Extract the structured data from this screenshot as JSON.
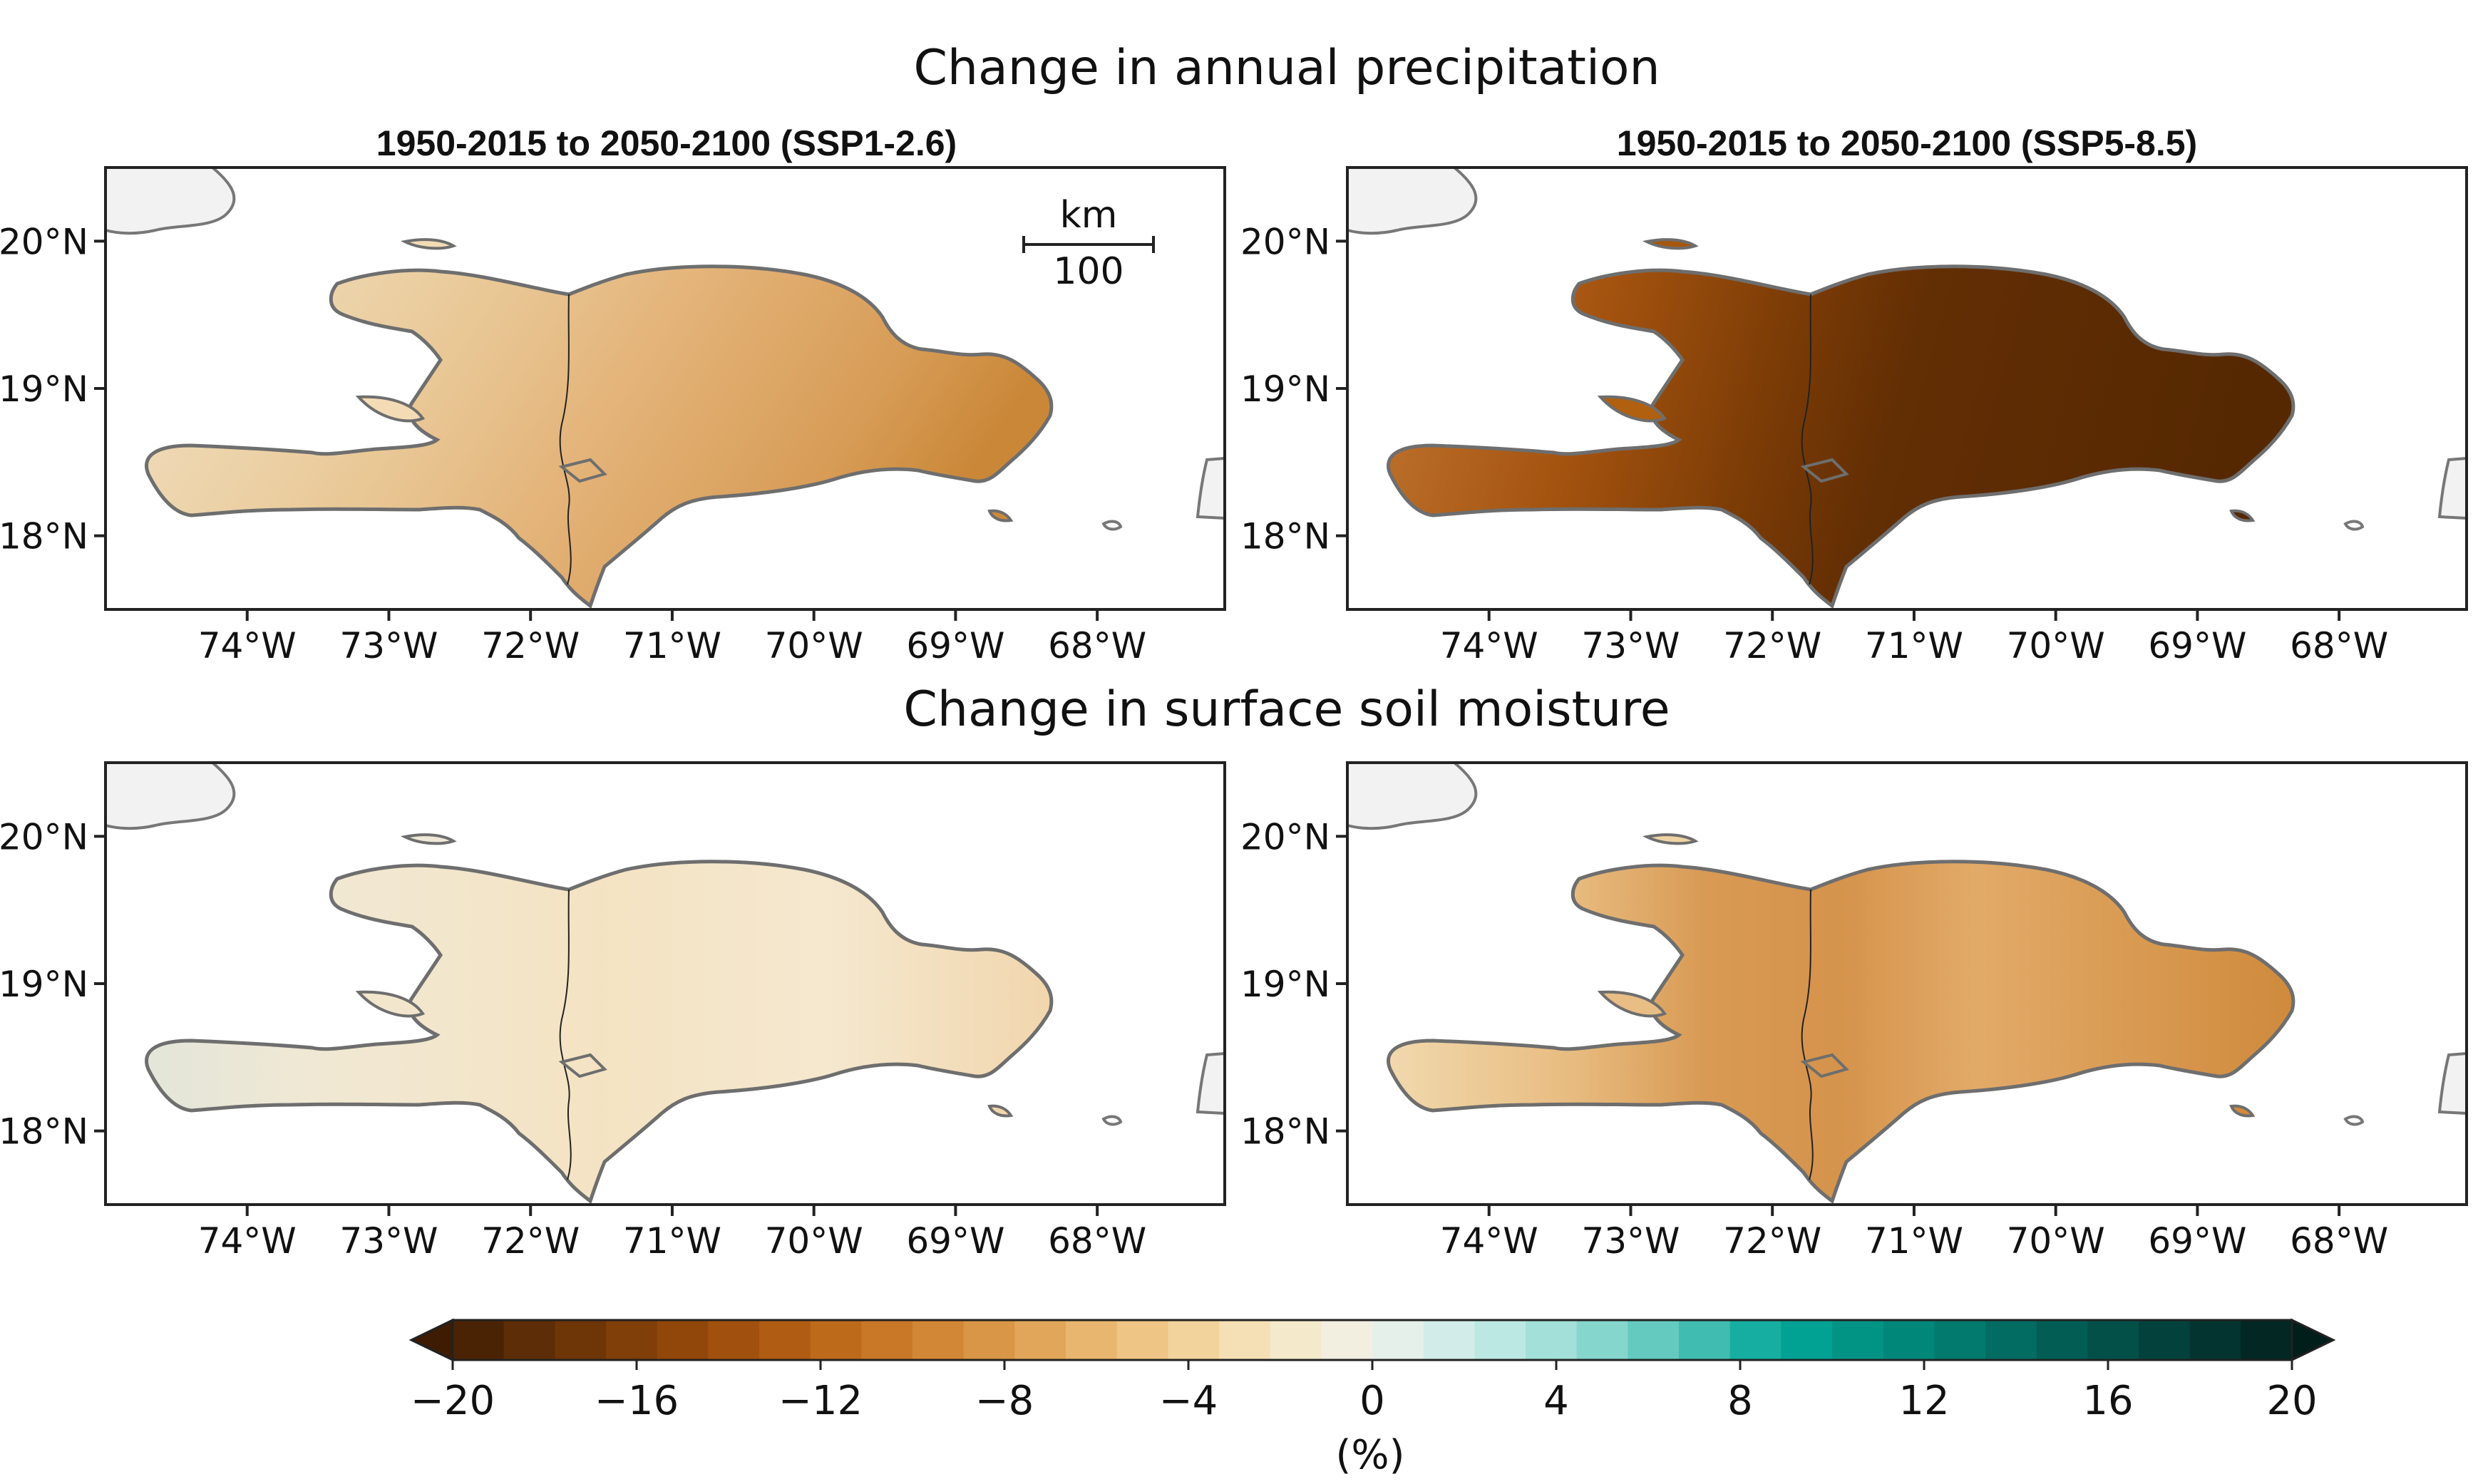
{
  "figure": {
    "row_titles": [
      "Change in annual precipitation",
      "Change in surface soil moisture"
    ],
    "panel_titles": [
      "1950-2015 to 2050-2100 (SSP1-2.6)",
      "1950-2015 to 2050-2100 (SSP5-8.5)"
    ],
    "lat_labels": [
      "20°N",
      "19°N",
      "18°N"
    ],
    "lon_labels": [
      "74°W",
      "73°W",
      "72°W",
      "71°W",
      "70°W",
      "69°W",
      "68°W"
    ],
    "scalebar": {
      "unit": "km",
      "value": "100"
    },
    "colorbar": {
      "ticks": [
        "−20",
        "−16",
        "−12",
        "−8",
        "−4",
        "0",
        "4",
        "8",
        "12",
        "16",
        "20"
      ],
      "label": "(%)",
      "colors": [
        "#4a2304",
        "#5c2d06",
        "#6e3507",
        "#803e08",
        "#914709",
        "#a1510d",
        "#b05c12",
        "#bd6a1b",
        "#c87827",
        "#d18735",
        "#d99646",
        "#e1a659",
        "#e8b66e",
        "#eec584",
        "#f2d39b",
        "#f5dfb4",
        "#f5e9cc",
        "#f2efe1",
        "#e6f0ea",
        "#d2ede9",
        "#bce8e3",
        "#a2e0d9",
        "#85d6cd",
        "#64cabf",
        "#40bcb0",
        "#16aea0",
        "#01a193",
        "#019485",
        "#01877a",
        "#027a6e",
        "#026c62",
        "#025e55",
        "#035049",
        "#03423c",
        "#033430",
        "#032723"
      ]
    }
  },
  "chart_data": {
    "type": "heatmap",
    "title": "Change in annual precipitation / Change in surface soil moisture",
    "region": "Hispaniola (Haiti and Dominican Republic)",
    "units": "%",
    "color_range": [
      -20,
      20
    ],
    "lat_ticks": [
      20,
      19,
      18
    ],
    "lon_ticks": [
      -74,
      -73,
      -72,
      -71,
      -70,
      -69,
      -68
    ],
    "lon_range": [
      -75,
      -67.1
    ],
    "lat_range": [
      17.5,
      20.5
    ],
    "panels": [
      {
        "variable": "annual precipitation",
        "scenario": "SSP1-2.6",
        "period": "1950-2015 to 2050-2100",
        "west_change": -4,
        "east_change": -9
      },
      {
        "variable": "annual precipitation",
        "scenario": "SSP5-8.5",
        "period": "1950-2015 to 2050-2100",
        "west_change": -13,
        "east_change": -20
      },
      {
        "variable": "surface soil moisture",
        "scenario": "SSP1-2.6",
        "period": "1950-2015 to 2050-2100",
        "west_change": 0,
        "east_change": -3
      },
      {
        "variable": "surface soil moisture",
        "scenario": "SSP5-8.5",
        "period": "1950-2015 to 2050-2100",
        "west_change": -5,
        "east_change": -10
      }
    ]
  }
}
